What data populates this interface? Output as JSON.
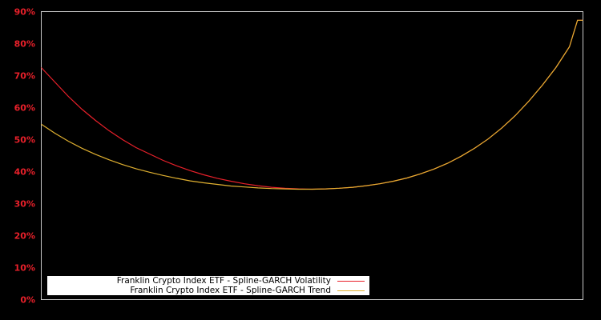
{
  "chart_data": {
    "type": "line",
    "title": "",
    "xlabel": "",
    "ylabel": "",
    "ylim": [
      0,
      90
    ],
    "yticks": [
      "0%",
      "10%",
      "20%",
      "30%",
      "40%",
      "50%",
      "60%",
      "70%",
      "80%",
      "90%"
    ],
    "grid": false,
    "legend_position": "lower left",
    "x": [
      0,
      0.025,
      0.05,
      0.075,
      0.1,
      0.125,
      0.15,
      0.175,
      0.2,
      0.225,
      0.25,
      0.275,
      0.3,
      0.325,
      0.35,
      0.375,
      0.4,
      0.425,
      0.45,
      0.475,
      0.5,
      0.525,
      0.55,
      0.575,
      0.6,
      0.625,
      0.65,
      0.675,
      0.7,
      0.725,
      0.75,
      0.775,
      0.8,
      0.825,
      0.85,
      0.875,
      0.9,
      0.925,
      0.95,
      0.975,
      0.99,
      1.0
    ],
    "series": [
      {
        "name": "Franklin Crypto Index ETF - Spline-GARCH Volatility",
        "color": "#e8202a",
        "values": [
          72.5,
          68.0,
          63.5,
          59.5,
          56.0,
          52.8,
          50.0,
          47.5,
          45.5,
          43.5,
          41.8,
          40.3,
          39.0,
          37.9,
          37.0,
          36.2,
          35.6,
          35.1,
          34.8,
          34.6,
          34.5,
          34.6,
          34.8,
          35.1,
          35.6,
          36.2,
          37.0,
          38.0,
          39.3,
          40.8,
          42.6,
          44.8,
          47.3,
          50.2,
          53.6,
          57.5,
          62.0,
          67.0,
          72.5,
          79.0,
          87.3,
          87.3
        ]
      },
      {
        "name": "Franklin Crypto Index ETF - Spline-GARCH Trend",
        "color": "#e0b030",
        "values": [
          54.8,
          52.0,
          49.5,
          47.3,
          45.4,
          43.7,
          42.2,
          40.9,
          39.8,
          38.8,
          37.9,
          37.1,
          36.5,
          36.0,
          35.5,
          35.2,
          34.9,
          34.7,
          34.6,
          34.5,
          34.5,
          34.6,
          34.8,
          35.1,
          35.6,
          36.2,
          37.0,
          38.0,
          39.3,
          40.8,
          42.6,
          44.8,
          47.3,
          50.2,
          53.6,
          57.5,
          62.0,
          67.0,
          72.5,
          79.0,
          87.3,
          87.3
        ]
      }
    ]
  },
  "legend": {
    "items": [
      {
        "label": "Franklin Crypto Index ETF - Spline-GARCH Volatility",
        "color": "#e8202a"
      },
      {
        "label": "Franklin Crypto Index ETF - Spline-GARCH Trend",
        "color": "#e0b030"
      }
    ]
  }
}
